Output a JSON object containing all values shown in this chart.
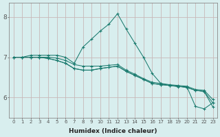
{
  "xlabel": "Humidex (Indice chaleur)",
  "xlim": [
    -0.5,
    23.5
  ],
  "ylim": [
    5.5,
    8.35
  ],
  "yticks": [
    6,
    7,
    8
  ],
  "xticks": [
    0,
    1,
    2,
    3,
    4,
    5,
    6,
    7,
    8,
    9,
    10,
    11,
    12,
    13,
    14,
    15,
    16,
    17,
    18,
    19,
    20,
    21,
    22,
    23
  ],
  "bg_color": "#d8eeee",
  "line_color": "#1a7a6e",
  "grid_color": "#c8b8b8",
  "series": [
    [
      7.0,
      7.0,
      7.05,
      7.05,
      7.05,
      7.05,
      7.0,
      6.85,
      7.25,
      7.45,
      7.65,
      7.82,
      8.08,
      7.7,
      7.35,
      7.0,
      6.6,
      6.35,
      6.3,
      6.27,
      6.27,
      5.78,
      5.72,
      5.87
    ],
    [
      7.0,
      7.0,
      7.0,
      7.0,
      6.97,
      6.92,
      6.85,
      6.72,
      6.68,
      6.68,
      6.72,
      6.75,
      6.78,
      6.65,
      6.55,
      6.45,
      6.35,
      6.32,
      6.3,
      6.28,
      6.25,
      6.18,
      6.15,
      5.77
    ],
    [
      7.0,
      7.0,
      7.0,
      7.0,
      6.97,
      6.92,
      6.85,
      6.72,
      6.68,
      6.68,
      6.72,
      6.75,
      6.78,
      6.65,
      6.55,
      6.45,
      6.35,
      6.32,
      6.3,
      6.28,
      6.25,
      6.18,
      6.15,
      5.87
    ],
    [
      7.0,
      7.0,
      7.0,
      7.0,
      7.0,
      6.98,
      6.92,
      6.82,
      6.78,
      6.78,
      6.78,
      6.8,
      6.82,
      6.68,
      6.58,
      6.47,
      6.38,
      6.35,
      6.32,
      6.3,
      6.28,
      6.2,
      6.18,
      5.95
    ]
  ]
}
